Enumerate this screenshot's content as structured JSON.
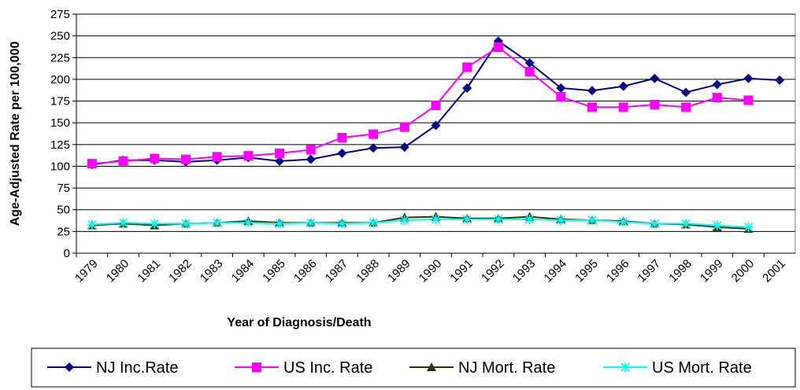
{
  "chart_data": {
    "type": "line",
    "x_label": "Year of Diagnosis/Death",
    "y_label": "Age-Adjusted Rate per 100,000",
    "categories": [
      "1979",
      "1980",
      "1981",
      "1982",
      "1983",
      "1984",
      "1985",
      "1986",
      "1987",
      "1988",
      "1989",
      "1990",
      "1991",
      "1992",
      "1993",
      "1994",
      "1995",
      "1996",
      "1997",
      "1998",
      "1999",
      "2000",
      "2001"
    ],
    "series": [
      {
        "name": "NJ Inc.Rate",
        "color": "#000080",
        "marker": "diamond",
        "values": [
          102,
          107,
          107,
          105,
          107,
          110,
          106,
          108,
          115,
          121,
          122,
          147,
          190,
          244,
          219,
          190,
          187,
          192,
          201,
          185,
          194,
          201,
          199
        ]
      },
      {
        "name": "US Inc. Rate",
        "color": "#ff00ff",
        "marker": "square",
        "values": [
          103,
          106,
          109,
          108,
          111,
          112,
          115,
          119,
          133,
          137,
          145,
          170,
          214,
          237,
          209,
          180,
          168,
          168,
          171,
          168,
          179,
          176,
          null
        ]
      },
      {
        "name": "NJ Mort. Rate",
        "color": "#333300",
        "marker": "triangle",
        "values": [
          32,
          34,
          32,
          34,
          35,
          37,
          35,
          35,
          35,
          35,
          41,
          42,
          40,
          40,
          42,
          39,
          38,
          37,
          34,
          33,
          30,
          28,
          null
        ]
      },
      {
        "name": "US Mort. Rate",
        "color": "#00ffff",
        "marker": "asterisk",
        "values": [
          33,
          35,
          34,
          34,
          35,
          35,
          34,
          35,
          34,
          35,
          38,
          39,
          39,
          39,
          39,
          38,
          38,
          36,
          34,
          34,
          32,
          30,
          null
        ]
      }
    ],
    "ylim": [
      0,
      275
    ],
    "yticks": [
      0,
      25,
      50,
      75,
      100,
      125,
      150,
      175,
      200,
      225,
      250,
      275
    ],
    "grid": true,
    "legend": "bottom"
  }
}
